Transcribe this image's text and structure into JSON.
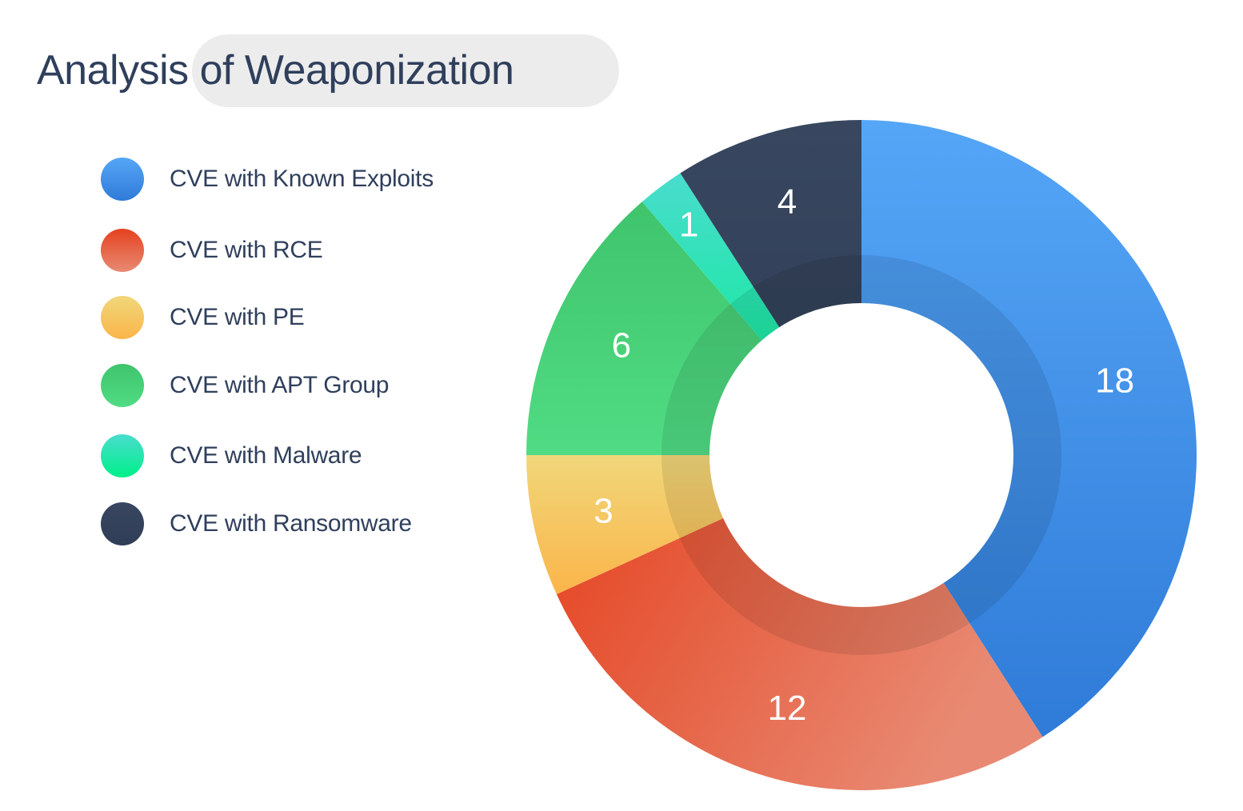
{
  "chart_data": {
    "type": "pie",
    "title": "Analysis of Weaponization",
    "donut": true,
    "legend_position": "left",
    "categories": [
      "CVE with Known Exploits",
      "CVE with RCE",
      "CVE with PE",
      "CVE with APT Group",
      "CVE with Malware",
      "CVE with Ransomware"
    ],
    "values": [
      18,
      12,
      3,
      6,
      1,
      4
    ],
    "data_labels": [
      "18",
      "12",
      "3",
      "6",
      "1",
      "4"
    ],
    "colors": [
      {
        "top": "#55a6f7",
        "bottom": "#2f7bd8"
      },
      {
        "top": "#e5421f",
        "bottom": "#e88a73"
      },
      {
        "top": "#f0d77a",
        "bottom": "#fbb54a"
      },
      {
        "top": "#3fc46c",
        "bottom": "#50dc84"
      },
      {
        "top": "#49dccd",
        "bottom": "#00f08a"
      },
      {
        "top": "#38475f",
        "bottom": "#2f3e56"
      }
    ]
  }
}
